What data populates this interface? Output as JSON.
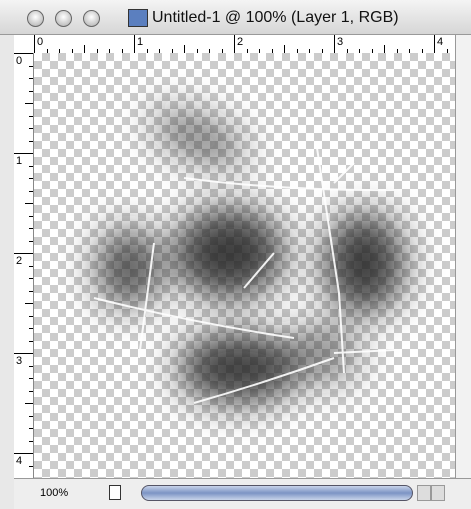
{
  "window": {
    "title": "Untitled-1 @ 100% (Layer 1, RGB)"
  },
  "rulers": {
    "horizontal": [
      "0",
      "1",
      "2",
      "3",
      "4"
    ],
    "vertical": [
      "0",
      "1",
      "2",
      "3",
      "4"
    ]
  },
  "status": {
    "zoom": "100%"
  }
}
